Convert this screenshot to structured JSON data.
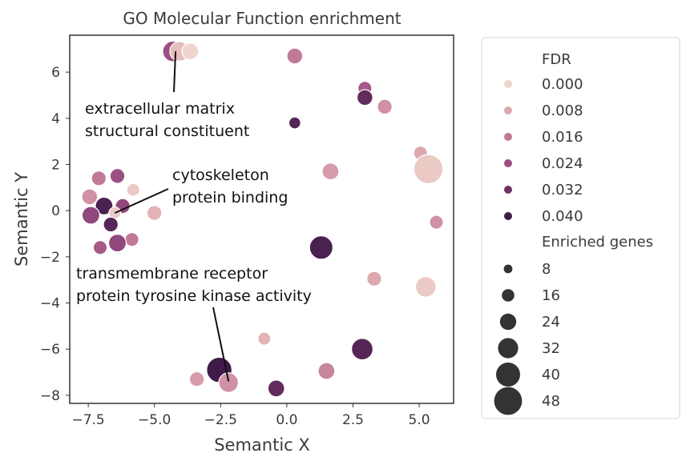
{
  "chart_data": {
    "type": "scatter",
    "title": "GO Molecular Function enrichment",
    "xlabel": "Semantic X",
    "ylabel": "Semantic Y",
    "xlim": [
      -8.2,
      6.3
    ],
    "ylim": [
      -8.35,
      7.6
    ],
    "xticks": [
      -7.5,
      -5.0,
      -2.5,
      0.0,
      2.5,
      5.0
    ],
    "xtick_labels": [
      "−7.5",
      "−5.0",
      "−2.5",
      "0.0",
      "2.5",
      "5.0"
    ],
    "yticks": [
      6,
      4,
      2,
      0,
      -2,
      -4,
      -6,
      -8
    ],
    "ytick_labels": [
      "6",
      "4",
      "2",
      "0",
      "−2",
      "−4",
      "−6",
      "−8"
    ],
    "grid": false,
    "legend_position": "right",
    "color_legend": {
      "title": "FDR",
      "labels": [
        "0.000",
        "0.008",
        "0.016",
        "0.024",
        "0.032",
        "0.040"
      ],
      "colors": [
        "#efd5cc",
        "#dda7ae",
        "#c07a98",
        "#9c4f85",
        "#6e3166",
        "#3f1b4a"
      ]
    },
    "size_legend": {
      "title": "Enriched genes",
      "labels": [
        "8",
        "16",
        "24",
        "32",
        "40",
        "48"
      ]
    },
    "annotations": [
      {
        "lines": [
          "extracellular matrix",
          "structural constituent"
        ],
        "point": [
          -4.2,
          6.9
        ]
      },
      {
        "lines": [
          "cytoskeleton",
          "protein binding"
        ],
        "point": [
          -6.5,
          -0.1
        ]
      },
      {
        "lines": [
          "transmembrane receptor",
          "protein tyrosine kinase activity"
        ],
        "point": [
          -2.2,
          -7.4
        ]
      }
    ],
    "points": [
      {
        "x": -4.3,
        "y": 6.9,
        "fdr": 0.024,
        "genes": 26
      },
      {
        "x": -4.05,
        "y": 6.9,
        "fdr": 0.004,
        "genes": 24
      },
      {
        "x": -3.65,
        "y": 6.9,
        "fdr": 0.0,
        "genes": 18
      },
      {
        "x": 0.3,
        "y": 6.7,
        "fdr": 0.016,
        "genes": 16
      },
      {
        "x": 2.95,
        "y": 5.3,
        "fdr": 0.022,
        "genes": 12
      },
      {
        "x": 2.95,
        "y": 4.9,
        "fdr": 0.034,
        "genes": 16
      },
      {
        "x": 3.7,
        "y": 4.5,
        "fdr": 0.012,
        "genes": 14
      },
      {
        "x": 0.3,
        "y": 3.8,
        "fdr": 0.036,
        "genes": 8
      },
      {
        "x": 5.05,
        "y": 2.5,
        "fdr": 0.008,
        "genes": 12
      },
      {
        "x": 5.35,
        "y": 1.8,
        "fdr": 0.002,
        "genes": 44
      },
      {
        "x": 1.65,
        "y": 1.7,
        "fdr": 0.01,
        "genes": 18
      },
      {
        "x": -6.4,
        "y": 1.5,
        "fdr": 0.024,
        "genes": 14
      },
      {
        "x": -7.1,
        "y": 1.4,
        "fdr": 0.016,
        "genes": 14
      },
      {
        "x": -5.8,
        "y": 0.9,
        "fdr": 0.002,
        "genes": 10
      },
      {
        "x": -7.45,
        "y": 0.6,
        "fdr": 0.012,
        "genes": 16
      },
      {
        "x": -6.9,
        "y": 0.2,
        "fdr": 0.038,
        "genes": 20
      },
      {
        "x": -6.2,
        "y": 0.2,
        "fdr": 0.026,
        "genes": 14
      },
      {
        "x": -5.0,
        "y": -0.1,
        "fdr": 0.006,
        "genes": 14
      },
      {
        "x": -6.5,
        "y": -0.1,
        "fdr": 0.002,
        "genes": 8
      },
      {
        "x": -7.4,
        "y": -0.2,
        "fdr": 0.026,
        "genes": 20
      },
      {
        "x": -6.65,
        "y": -0.6,
        "fdr": 0.036,
        "genes": 14
      },
      {
        "x": 5.65,
        "y": -0.5,
        "fdr": 0.012,
        "genes": 12
      },
      {
        "x": -5.85,
        "y": -1.25,
        "fdr": 0.016,
        "genes": 12
      },
      {
        "x": -6.4,
        "y": -1.4,
        "fdr": 0.026,
        "genes": 20
      },
      {
        "x": -7.05,
        "y": -1.6,
        "fdr": 0.022,
        "genes": 12
      },
      {
        "x": 1.3,
        "y": -1.6,
        "fdr": 0.038,
        "genes": 32
      },
      {
        "x": 3.3,
        "y": -2.95,
        "fdr": 0.008,
        "genes": 14
      },
      {
        "x": 5.25,
        "y": -3.3,
        "fdr": 0.002,
        "genes": 26
      },
      {
        "x": -0.85,
        "y": -5.55,
        "fdr": 0.006,
        "genes": 10
      },
      {
        "x": 2.85,
        "y": -6.0,
        "fdr": 0.036,
        "genes": 28
      },
      {
        "x": -2.55,
        "y": -6.9,
        "fdr": 0.04,
        "genes": 36
      },
      {
        "x": 1.5,
        "y": -6.95,
        "fdr": 0.014,
        "genes": 18
      },
      {
        "x": -3.4,
        "y": -7.3,
        "fdr": 0.01,
        "genes": 14
      },
      {
        "x": -2.2,
        "y": -7.45,
        "fdr": 0.012,
        "genes": 24
      },
      {
        "x": -0.4,
        "y": -7.7,
        "fdr": 0.034,
        "genes": 18
      }
    ]
  }
}
